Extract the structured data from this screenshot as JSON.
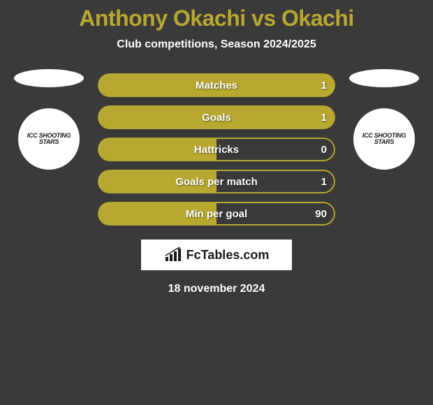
{
  "title": "Anthony Okachi vs Okachi",
  "subtitle": "Club competitions, Season 2024/2025",
  "colors": {
    "background": "#3a3a3a",
    "accent": "#b8a830",
    "text_white": "#ffffff",
    "badge_bg": "#ffffff"
  },
  "left_player": {
    "club_name": "ICC SHOOTING STARS"
  },
  "right_player": {
    "club_name": "ICC SHOOTING STARS"
  },
  "stats": [
    {
      "label": "Matches",
      "right_value": "1",
      "left_fill_pct": 50,
      "right_fill_pct": 50,
      "right_outlined": false
    },
    {
      "label": "Goals",
      "right_value": "1",
      "left_fill_pct": 50,
      "right_fill_pct": 50,
      "right_outlined": false
    },
    {
      "label": "Hattricks",
      "right_value": "0",
      "left_fill_pct": 50,
      "right_fill_pct": 50,
      "right_outlined": true
    },
    {
      "label": "Goals per match",
      "right_value": "1",
      "left_fill_pct": 50,
      "right_fill_pct": 50,
      "right_outlined": true
    },
    {
      "label": "Min per goal",
      "right_value": "90",
      "left_fill_pct": 50,
      "right_fill_pct": 50,
      "right_outlined": true
    }
  ],
  "footer": {
    "brand": "FcTables.com",
    "date": "18 november 2024"
  }
}
